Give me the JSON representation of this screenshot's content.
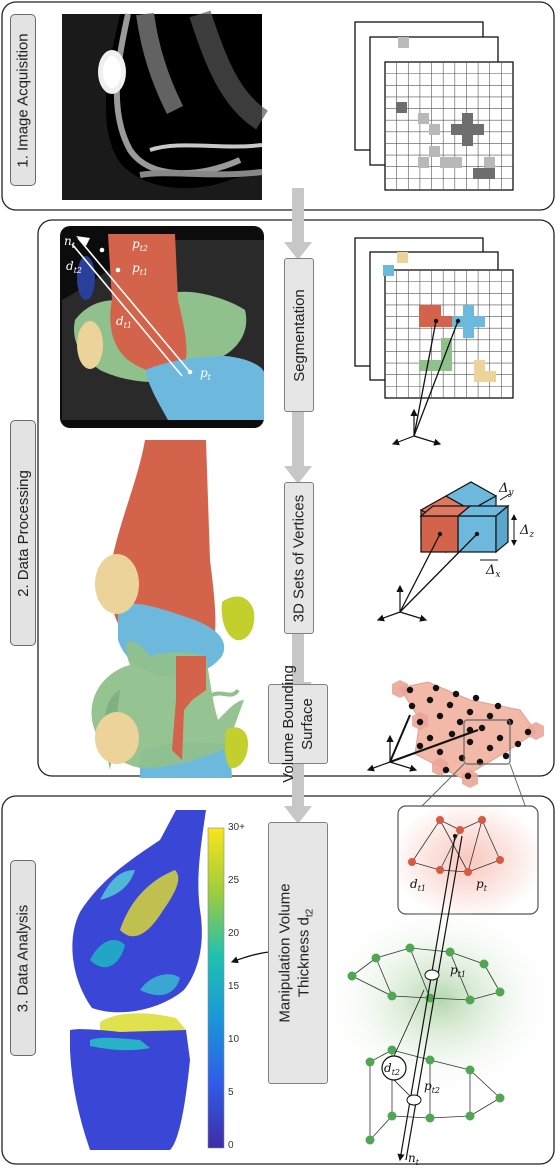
{
  "stages": {
    "acquisition": "1. Image Acquisition",
    "processing": "2. Data Processing",
    "analysis": "3. Data Analysis"
  },
  "steps": {
    "segmentation": "Segmentation",
    "vertices": "3D Sets of Vertices",
    "surface_line1": "Volume Bounding",
    "surface_line2": "Surface",
    "thickness_line1": "Manipulation Volume",
    "thickness_line2": "Thickness d",
    "thickness_sub": "t2"
  },
  "math": {
    "n": "n",
    "t": "t",
    "p": "p",
    "d": "d",
    "t1": "t1",
    "t2": "t2",
    "sub1": "1",
    "sub2": "2",
    "dx": "x",
    "dy": "y",
    "dz": "z",
    "delta": "Δ"
  },
  "colorbar": {
    "ticks": [
      "30+",
      "25",
      "20",
      "15",
      "10",
      "5",
      "0"
    ]
  },
  "colors": {
    "femur": "#d3634a",
    "patella": "#ecd39a",
    "tibia": "#6cb9dd",
    "fibula": "#c3cf2c",
    "soft_tissue": "#90c08c",
    "vertex_pink": "#f3b9a8",
    "green_patch": "#a7cf9f"
  }
}
